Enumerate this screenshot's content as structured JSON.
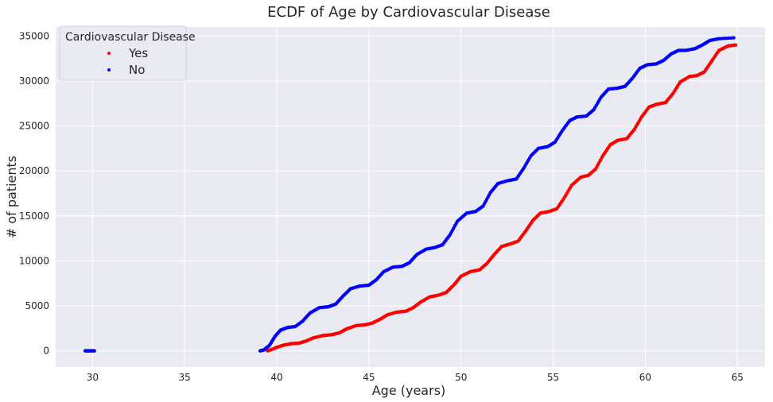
{
  "chart_data": {
    "type": "scatter",
    "title": "ECDF of Age by Cardiovascular Disease",
    "xlabel": "Age (years)",
    "ylabel": "# of patients",
    "xlim": [
      28,
      66.5
    ],
    "ylim": [
      -1800,
      36000
    ],
    "xticks": [
      30,
      35,
      40,
      45,
      50,
      55,
      60,
      65
    ],
    "yticks": [
      0,
      5000,
      10000,
      15000,
      20000,
      25000,
      30000,
      35000
    ],
    "grid": true,
    "legend": {
      "title": "Cardiovascular Disease",
      "placement": "top-left"
    },
    "series": [
      {
        "name": "Yes",
        "color": "#ff0000",
        "points": [
          [
            39.5,
            0
          ],
          [
            39.8,
            200
          ],
          [
            40.0,
            400
          ],
          [
            40.4,
            650
          ],
          [
            40.8,
            800
          ],
          [
            41.2,
            850
          ],
          [
            41.6,
            1100
          ],
          [
            42.0,
            1450
          ],
          [
            42.5,
            1700
          ],
          [
            43.0,
            1800
          ],
          [
            43.4,
            2000
          ],
          [
            43.8,
            2450
          ],
          [
            44.3,
            2800
          ],
          [
            44.8,
            2900
          ],
          [
            45.2,
            3100
          ],
          [
            45.6,
            3500
          ],
          [
            46.0,
            4000
          ],
          [
            46.5,
            4300
          ],
          [
            47.0,
            4400
          ],
          [
            47.4,
            4800
          ],
          [
            47.8,
            5400
          ],
          [
            48.3,
            6000
          ],
          [
            48.8,
            6200
          ],
          [
            49.2,
            6500
          ],
          [
            49.6,
            7300
          ],
          [
            50.0,
            8300
          ],
          [
            50.5,
            8800
          ],
          [
            51.0,
            9000
          ],
          [
            51.4,
            9700
          ],
          [
            51.8,
            10700
          ],
          [
            52.2,
            11600
          ],
          [
            52.7,
            11900
          ],
          [
            53.1,
            12200
          ],
          [
            53.5,
            13300
          ],
          [
            53.9,
            14500
          ],
          [
            54.3,
            15300
          ],
          [
            54.8,
            15500
          ],
          [
            55.2,
            15800
          ],
          [
            55.6,
            17000
          ],
          [
            56.0,
            18400
          ],
          [
            56.5,
            19300
          ],
          [
            56.9,
            19500
          ],
          [
            57.3,
            20200
          ],
          [
            57.7,
            21700
          ],
          [
            58.1,
            22900
          ],
          [
            58.5,
            23400
          ],
          [
            59.0,
            23600
          ],
          [
            59.4,
            24600
          ],
          [
            59.8,
            26000
          ],
          [
            60.2,
            27100
          ],
          [
            60.6,
            27400
          ],
          [
            61.1,
            27600
          ],
          [
            61.5,
            28600
          ],
          [
            61.9,
            29900
          ],
          [
            62.4,
            30500
          ],
          [
            62.8,
            30600
          ],
          [
            63.2,
            31000
          ],
          [
            63.6,
            32200
          ],
          [
            64.0,
            33400
          ],
          [
            64.5,
            33900
          ],
          [
            64.9,
            34000
          ]
        ]
      },
      {
        "name": "No",
        "color": "#0000ff",
        "points": [
          [
            29.6,
            0
          ],
          [
            29.8,
            0
          ],
          [
            30.1,
            0
          ],
          [
            39.1,
            0
          ],
          [
            39.3,
            100
          ],
          [
            39.6,
            600
          ],
          [
            39.9,
            1600
          ],
          [
            40.2,
            2300
          ],
          [
            40.6,
            2600
          ],
          [
            41.0,
            2700
          ],
          [
            41.4,
            3300
          ],
          [
            41.8,
            4200
          ],
          [
            42.3,
            4800
          ],
          [
            42.8,
            4900
          ],
          [
            43.2,
            5200
          ],
          [
            43.6,
            6100
          ],
          [
            44.0,
            6900
          ],
          [
            44.5,
            7200
          ],
          [
            45.0,
            7300
          ],
          [
            45.4,
            7900
          ],
          [
            45.8,
            8800
          ],
          [
            46.3,
            9300
          ],
          [
            46.8,
            9400
          ],
          [
            47.2,
            9800
          ],
          [
            47.6,
            10700
          ],
          [
            48.1,
            11300
          ],
          [
            48.6,
            11500
          ],
          [
            49.0,
            11800
          ],
          [
            49.4,
            12900
          ],
          [
            49.8,
            14400
          ],
          [
            50.3,
            15300
          ],
          [
            50.8,
            15500
          ],
          [
            51.2,
            16100
          ],
          [
            51.6,
            17600
          ],
          [
            52.0,
            18600
          ],
          [
            52.5,
            18900
          ],
          [
            53.0,
            19100
          ],
          [
            53.4,
            20300
          ],
          [
            53.8,
            21700
          ],
          [
            54.2,
            22500
          ],
          [
            54.7,
            22700
          ],
          [
            55.1,
            23200
          ],
          [
            55.5,
            24500
          ],
          [
            55.9,
            25600
          ],
          [
            56.3,
            26000
          ],
          [
            56.8,
            26100
          ],
          [
            57.2,
            26800
          ],
          [
            57.6,
            28200
          ],
          [
            58.0,
            29100
          ],
          [
            58.5,
            29200
          ],
          [
            58.9,
            29400
          ],
          [
            59.3,
            30300
          ],
          [
            59.7,
            31400
          ],
          [
            60.1,
            31800
          ],
          [
            60.6,
            31900
          ],
          [
            61.0,
            32300
          ],
          [
            61.4,
            33000
          ],
          [
            61.8,
            33400
          ],
          [
            62.2,
            33400
          ],
          [
            62.7,
            33600
          ],
          [
            63.1,
            34000
          ],
          [
            63.5,
            34500
          ],
          [
            64.0,
            34700
          ],
          [
            64.8,
            34800
          ]
        ]
      }
    ]
  }
}
